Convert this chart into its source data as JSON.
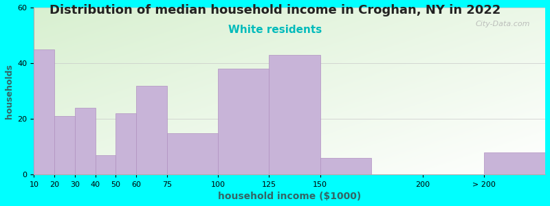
{
  "title": "Distribution of median household income in Croghan, NY in 2022",
  "subtitle": "White residents",
  "xlabel": "household income ($1000)",
  "ylabel": "households",
  "title_fontsize": 13,
  "subtitle_fontsize": 11,
  "subtitle_color": "#00bbbb",
  "background_outer": "#00ffff",
  "bar_color": "#c8b4d8",
  "bar_edge_color": "#b090c0",
  "ylim": [
    0,
    60
  ],
  "yticks": [
    0,
    20,
    40,
    60
  ],
  "categories": [
    "10",
    "20",
    "30",
    "40",
    "50",
    "60",
    "75",
    "100",
    "125",
    "150",
    "200",
    "> 200"
  ],
  "values": [
    45,
    21,
    24,
    7,
    22,
    32,
    15,
    38,
    43,
    6,
    0,
    8
  ],
  "bar_lefts": [
    10,
    20,
    30,
    40,
    50,
    60,
    75,
    100,
    125,
    150,
    200,
    230
  ],
  "bar_widths": [
    10,
    10,
    10,
    10,
    10,
    15,
    25,
    25,
    25,
    25,
    5,
    30
  ],
  "tick_positions": [
    10,
    20,
    30,
    40,
    50,
    60,
    75,
    100,
    125,
    150,
    200,
    230
  ],
  "xlim_left": 10,
  "xlim_right": 260,
  "watermark": "City-Data.com",
  "bg_color_topleft": "#d8f0d0",
  "bg_color_bottomright": "#f8fef8"
}
